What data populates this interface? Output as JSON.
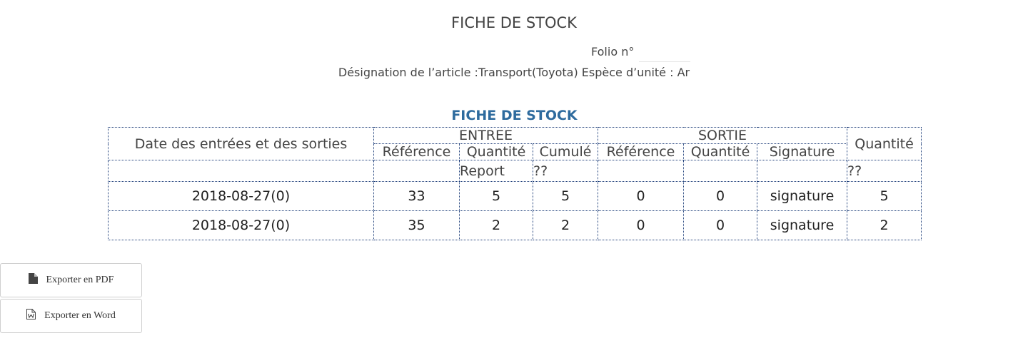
{
  "header": {
    "title": "FICHE DE STOCK",
    "folio_label": "Folio n°",
    "folio_value": "",
    "designation": "Désignation de l’article :Transport(Toyota) Espèce d’unité : Ar"
  },
  "table": {
    "caption": "FICHE DE STOCK",
    "headers": {
      "date": "Date des entrées et des sorties",
      "entree": "ENTREE",
      "sortie": "SORTIE",
      "quantite_total": "Quantité",
      "entree_cols": [
        "Référence",
        "Quantité",
        "Cumulé"
      ],
      "sortie_cols": [
        "Référence",
        "Quantité",
        "Signature"
      ]
    },
    "report_row": {
      "entree_quantite": "Report",
      "entree_cumule": "??",
      "quantite": "??"
    },
    "rows": [
      {
        "date": "2018-08-27(0)",
        "entree_ref": "33",
        "entree_qte": "5",
        "entree_cumule": "5",
        "sortie_ref": "0",
        "sortie_qte": "0",
        "signature": "signature",
        "quantite": "5"
      },
      {
        "date": "2018-08-27(0)",
        "entree_ref": "35",
        "entree_qte": "2",
        "entree_cumule": "2",
        "sortie_ref": "0",
        "sortie_qte": "0",
        "signature": "signature",
        "quantite": "2"
      }
    ]
  },
  "actions": {
    "export_pdf": "Exporter en PDF",
    "export_word": "Exporter en Word"
  },
  "icons": {
    "pdf": "file-icon",
    "word": "word-file-icon"
  }
}
